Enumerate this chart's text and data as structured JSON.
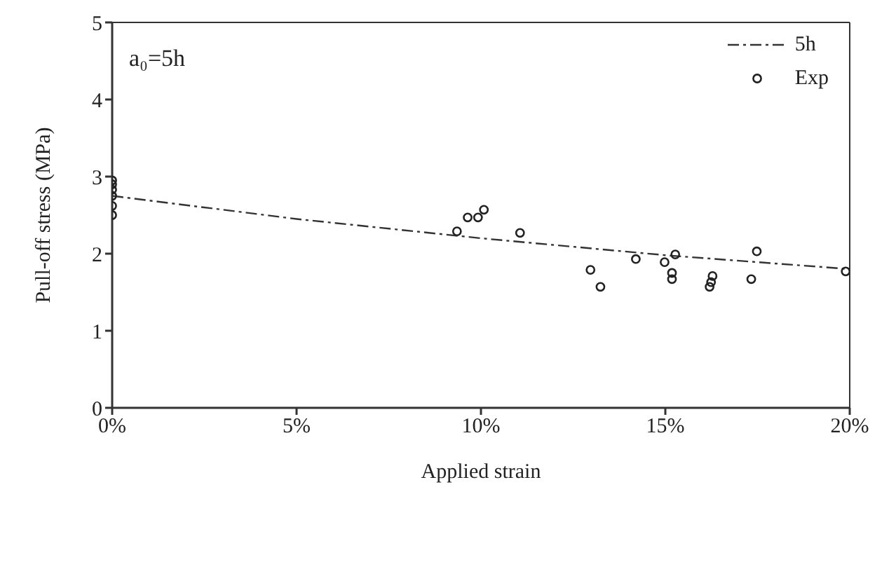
{
  "chart_data": {
    "type": "scatter",
    "xlabel": "Applied strain",
    "ylabel": "Pull-off stress (MPa)",
    "annotations": [
      "a₀=5h"
    ],
    "xlim": [
      0,
      20
    ],
    "xticks": [
      {
        "value": 0,
        "label": "0%"
      },
      {
        "value": 5,
        "label": "5%"
      },
      {
        "value": 10,
        "label": "10%"
      },
      {
        "value": 15,
        "label": "15%"
      },
      {
        "value": 20,
        "label": "20%"
      }
    ],
    "ylim": [
      0,
      5
    ],
    "yticks": [
      0,
      1,
      2,
      3,
      4,
      5
    ],
    "legend": "top right",
    "series": [
      {
        "name": "5h",
        "type": "line",
        "color": "#333333",
        "line_style": "dashed",
        "marker": "none",
        "x": [
          0,
          5,
          10,
          15,
          20
        ],
        "values": [
          2.75,
          2.45,
          2.2,
          1.98,
          1.8
        ]
      },
      {
        "name": "Exp",
        "color": "#222222",
        "marker": "circle",
        "x": [
          0,
          0,
          0,
          0,
          0,
          0,
          9.35,
          9.64,
          9.92,
          10.08,
          11.06,
          12.97,
          13.24,
          14.2,
          14.98,
          15.27,
          15.18,
          15.18,
          16.2,
          16.24,
          16.28,
          17.33,
          17.48,
          19.89
        ],
        "values": [
          2.5,
          2.62,
          2.75,
          2.83,
          2.9,
          2.95,
          2.29,
          2.47,
          2.47,
          2.57,
          2.27,
          1.79,
          1.57,
          1.93,
          1.89,
          1.99,
          1.75,
          1.67,
          1.57,
          1.63,
          1.71,
          1.67,
          2.03,
          1.77
        ]
      }
    ]
  }
}
